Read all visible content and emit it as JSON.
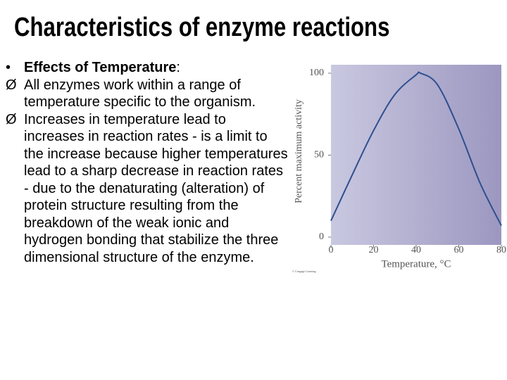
{
  "slide": {
    "title": "Characteristics of enzyme reactions",
    "bullets": [
      {
        "marker": "•",
        "bold": "Effects of Temperature",
        "text": ":"
      },
      {
        "marker": "Ø",
        "bold": "",
        "text": "All enzymes work within a range of temperature specific to the organism."
      },
      {
        "marker": "Ø",
        "bold": "",
        "text": "Increases in temperature lead to increases in reaction rates - is a limit to the increase because higher temperatures lead to a sharp decrease in reaction rates - due to the denaturating (alteration) of protein structure resulting from the breakdown of the weak ionic and hydrogen bonding that stabilize the three dimensional structure of the enzyme."
      }
    ]
  },
  "chart_data": {
    "type": "line",
    "x_label": "Temperature, °C",
    "y_label": "Percent maximum activity",
    "credit": "© Cengage Learning",
    "x": [
      0,
      10,
      20,
      30,
      40,
      42,
      50,
      60,
      70,
      80
    ],
    "values": [
      10,
      38,
      65,
      87,
      99,
      100,
      93,
      66,
      33,
      7
    ],
    "color": "#2e4f8f",
    "xlim": [
      0,
      80
    ],
    "xticks": [
      0,
      20,
      40,
      60,
      80
    ],
    "ylim": [
      0,
      100
    ],
    "yticks": [
      0,
      50,
      100
    ]
  }
}
